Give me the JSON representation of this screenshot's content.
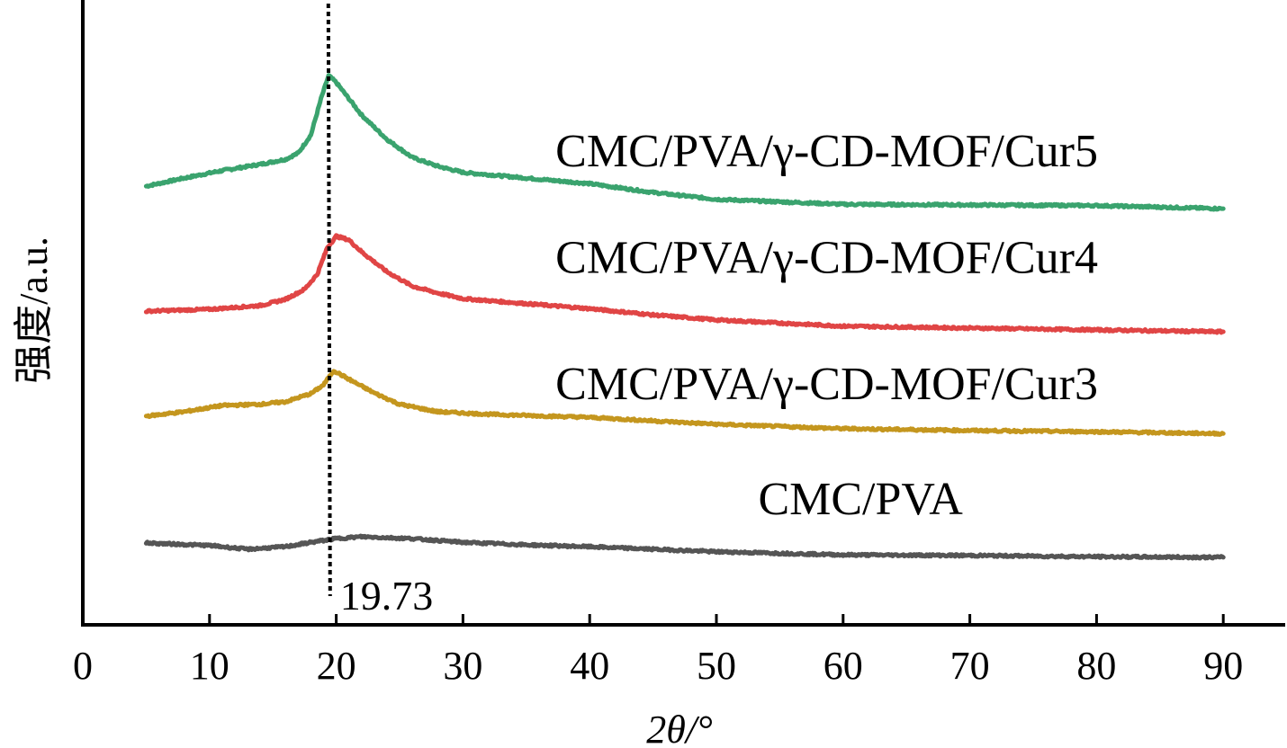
{
  "chart_data": {
    "type": "line",
    "title": "",
    "xlabel": "2θ/°",
    "ylabel": "强度/a.u.",
    "xlim": [
      0,
      95
    ],
    "ylim": [
      0,
      100
    ],
    "xticks": [
      0,
      10,
      20,
      30,
      40,
      50,
      60,
      70,
      80,
      90
    ],
    "yticks": [],
    "grid": false,
    "legend": "inline labels above each curve",
    "annotations": [
      {
        "type": "vertical-dotted-line",
        "x": 19.73,
        "label": "19.73"
      }
    ],
    "series": [
      {
        "name": "CMC/PVA/γ-CD-MOF/Cur5",
        "color": "#3aa36e",
        "label_pos": {
          "x": 37.3,
          "y": 73.4
        },
        "x": [
          5,
          8,
          11,
          14,
          16,
          17,
          18,
          18.8,
          19.4,
          20,
          21,
          22,
          24,
          26,
          28,
          30,
          35,
          40,
          45,
          50,
          60,
          70,
          80,
          90
        ],
        "y": [
          70.2,
          71.5,
          72.7,
          73.7,
          74.5,
          75.5,
          78.4,
          84.2,
          87.9,
          86.8,
          84.2,
          81.6,
          77.7,
          74.8,
          73.4,
          72.4,
          71.5,
          70.6,
          69.2,
          68.1,
          67.3,
          67.2,
          67.1,
          66.6
        ]
      },
      {
        "name": "CMC/PVA/γ-CD-MOF/Cur4",
        "color": "#e04545",
        "label_pos": {
          "x": 37.3,
          "y": 56.3
        },
        "x": [
          5,
          10,
          14,
          16,
          17.5,
          18.5,
          19.3,
          20,
          21,
          22,
          24,
          26,
          28,
          30,
          35,
          40,
          45,
          50,
          60,
          70,
          80,
          90
        ],
        "y": [
          50.2,
          50.5,
          51.1,
          52.1,
          53.7,
          56.1,
          60.4,
          62.2,
          61.6,
          59.7,
          56.5,
          54.2,
          53.1,
          52.2,
          51.4,
          50.6,
          49.6,
          48.8,
          47.8,
          47.5,
          47.2,
          46.9
        ]
      },
      {
        "name": "CMC/PVA/γ-CD-MOF/Cur3",
        "color": "#c4961e",
        "label_pos": {
          "x": 37.3,
          "y": 36.1
        },
        "x": [
          5,
          8,
          11,
          14,
          16,
          18,
          19,
          19.8,
          21,
          23,
          25,
          28,
          32,
          40,
          50,
          60,
          70,
          80,
          90
        ],
        "y": [
          33.4,
          34.1,
          35.1,
          35.3,
          35.7,
          37.0,
          38.4,
          40.7,
          39.3,
          37.1,
          35.3,
          34.1,
          33.7,
          33.2,
          32.1,
          31.4,
          31.1,
          30.9,
          30.6
        ]
      },
      {
        "name": "CMC/PVA",
        "color": "#555555",
        "label_pos": {
          "x": 53.3,
          "y": 17.7
        },
        "x": [
          5,
          10,
          13,
          16,
          18,
          20,
          22,
          26,
          30,
          35,
          40,
          50,
          60,
          70,
          80,
          90
        ],
        "y": [
          13.1,
          12.7,
          12.1,
          12.5,
          13.2,
          13.8,
          14.1,
          13.8,
          13.2,
          12.8,
          12.5,
          11.7,
          11.2,
          11.1,
          10.9,
          10.8
        ]
      }
    ]
  }
}
